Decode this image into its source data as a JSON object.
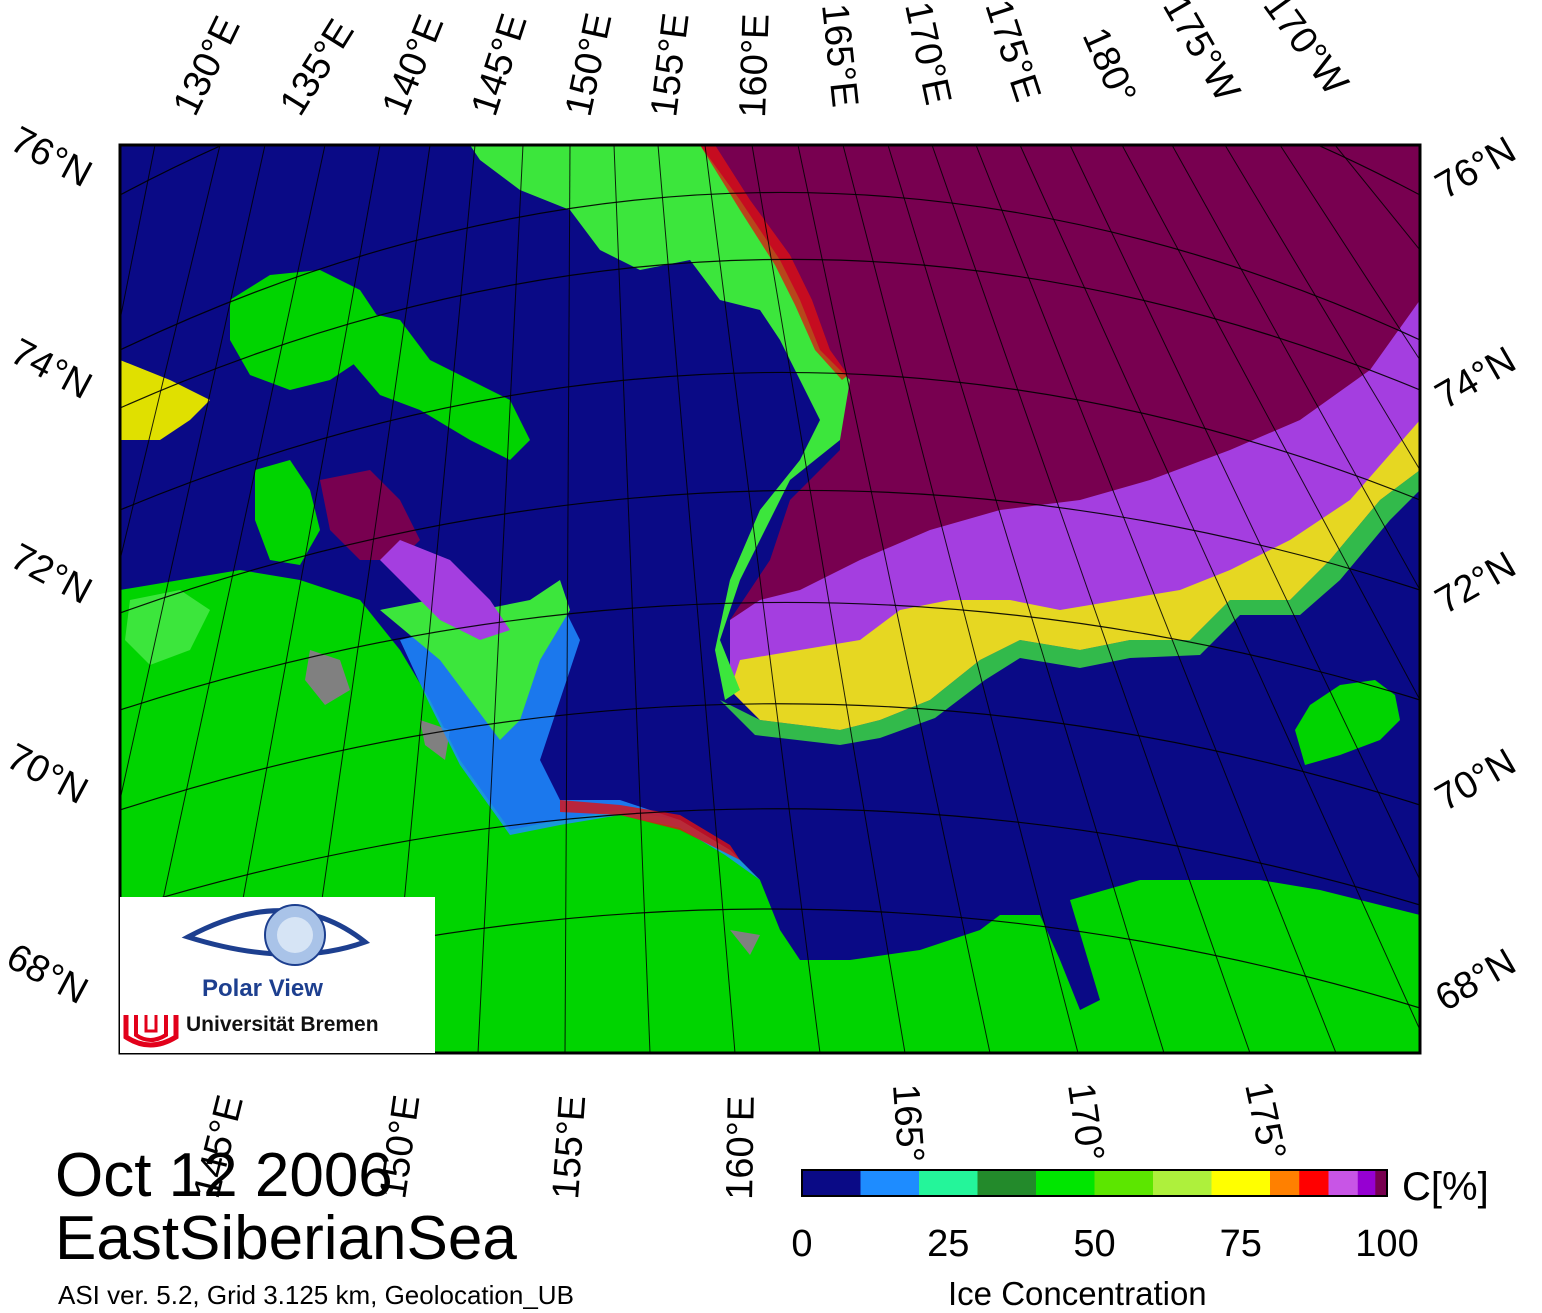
{
  "title": {
    "date": "Oct 12 2006",
    "region": "EastSiberianSea",
    "info": "ASI ver. 5.2,  Grid 3.125 km, Geolocation_UB"
  },
  "top_lon_labels": [
    "130°E",
    "135°E",
    "140°E",
    "145°E",
    "150°E",
    "155°E",
    "160°E",
    "165°E",
    "170°E",
    "175°E",
    "180°",
    "175°W",
    "170°W"
  ],
  "bottom_lon_labels": [
    "145°E",
    "150°E",
    "155°E",
    "160°E",
    "165°",
    "170°",
    "175°"
  ],
  "left_lat_labels": [
    "76°N",
    "74°N",
    "72°N",
    "70°N",
    "68°N"
  ],
  "right_lat_labels": [
    "76°N",
    "74°N",
    "72°N",
    "70°N",
    "68°N"
  ],
  "colorbar": {
    "title": "Ice Concentration",
    "unit": "C[%]",
    "ticks": [
      "0",
      "25",
      "50",
      "75",
      "100"
    ],
    "range": [
      0,
      100
    ],
    "colors": [
      "#0a0a86",
      "#1e8cff",
      "#24f59a",
      "#238a2b",
      "#00e600",
      "#5ce600",
      "#aef03c",
      "#ffff00",
      "#ff8000",
      "#ff0000",
      "#c855e6",
      "#9600d2",
      "#780050"
    ]
  },
  "map_colors": {
    "water": "#0a0a86",
    "land": "#00d400",
    "land_ice": "#808080",
    "pack_ice": "#780050",
    "frame": "#000000"
  },
  "logo": {
    "name": "Polar View",
    "org": "Universität Bremen"
  }
}
